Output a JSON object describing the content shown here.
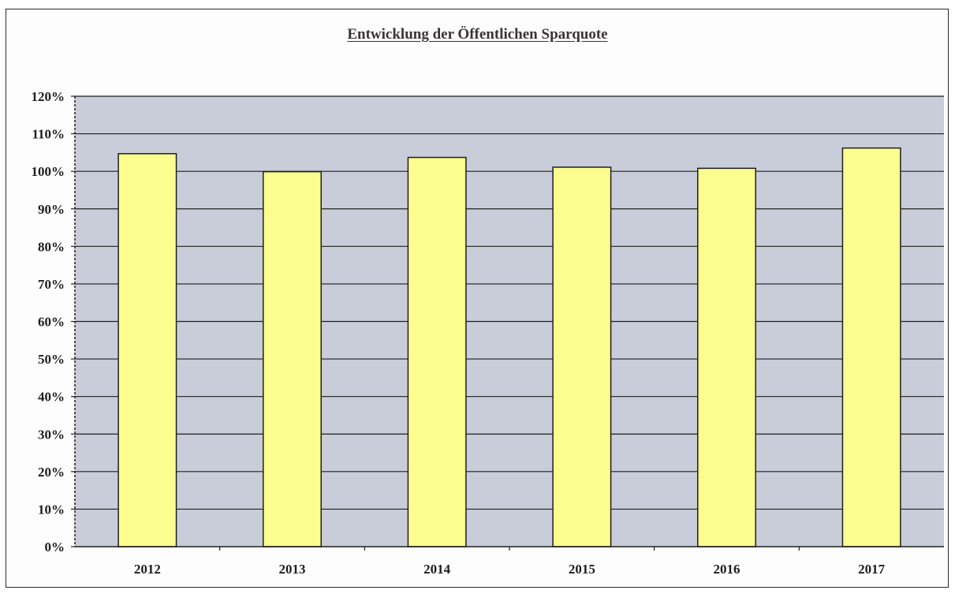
{
  "chart_data": {
    "type": "bar",
    "title": "Entwicklung der Öffentlichen Sparquote",
    "xlabel": "",
    "ylabel": "",
    "categories": [
      "2012",
      "2013",
      "2014",
      "2015",
      "2016",
      "2017"
    ],
    "values": [
      104.7,
      99.9,
      103.7,
      101.1,
      100.8,
      106.2
    ],
    "ylim": [
      0,
      120
    ],
    "y_ticks": [
      0,
      10,
      20,
      30,
      40,
      50,
      60,
      70,
      80,
      90,
      100,
      110,
      120
    ],
    "y_tick_labels": [
      "0%",
      "10%",
      "20%",
      "30%",
      "40%",
      "50%",
      "60%",
      "70%",
      "80%",
      "90%",
      "100%",
      "110%",
      "120%"
    ],
    "grid": true,
    "legend": "none",
    "colors": {
      "bar_fill": "#fbfd8f",
      "bar_stroke": "#1f1f1f",
      "plot_background": "#c9cdd9",
      "gridline": "#1f1f1f"
    }
  }
}
